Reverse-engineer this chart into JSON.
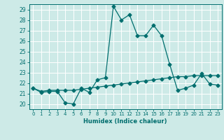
{
  "xlabel": "Humidex (Indice chaleur)",
  "background_color": "#cdeae7",
  "grid_color": "#ffffff",
  "line_color": "#006e6e",
  "xlim": [
    -0.5,
    23.5
  ],
  "ylim": [
    19.5,
    29.5
  ],
  "yticks": [
    20,
    21,
    22,
    23,
    24,
    25,
    26,
    27,
    28,
    29
  ],
  "xticks": [
    0,
    1,
    2,
    3,
    4,
    5,
    6,
    7,
    8,
    9,
    10,
    11,
    12,
    13,
    14,
    15,
    16,
    17,
    18,
    19,
    20,
    21,
    22,
    23
  ],
  "line1_x": [
    0,
    1,
    2,
    3,
    4,
    5,
    6,
    7,
    8,
    9,
    10,
    11,
    12,
    13,
    14,
    15,
    16,
    17,
    18,
    19,
    20,
    21,
    22,
    23
  ],
  "line1_y": [
    21.5,
    21.1,
    21.2,
    21.2,
    20.1,
    20.0,
    21.5,
    21.1,
    22.3,
    22.5,
    29.3,
    28.0,
    28.5,
    26.5,
    26.5,
    27.5,
    26.5,
    23.8,
    21.3,
    21.5,
    21.8,
    22.9,
    21.9,
    21.8
  ],
  "line2_x": [
    0,
    1,
    2,
    3,
    4,
    5,
    6,
    7,
    8,
    9,
    10,
    11,
    12,
    13,
    14,
    15,
    16,
    17,
    18,
    19,
    20,
    21,
    22,
    23
  ],
  "line2_y": [
    21.5,
    21.2,
    21.3,
    21.3,
    21.3,
    21.3,
    21.4,
    21.5,
    21.6,
    21.7,
    21.8,
    21.9,
    22.0,
    22.1,
    22.2,
    22.3,
    22.4,
    22.5,
    22.6,
    22.6,
    22.7,
    22.7,
    22.7,
    22.7
  ],
  "marker_size": 2.5,
  "line_width": 0.9
}
